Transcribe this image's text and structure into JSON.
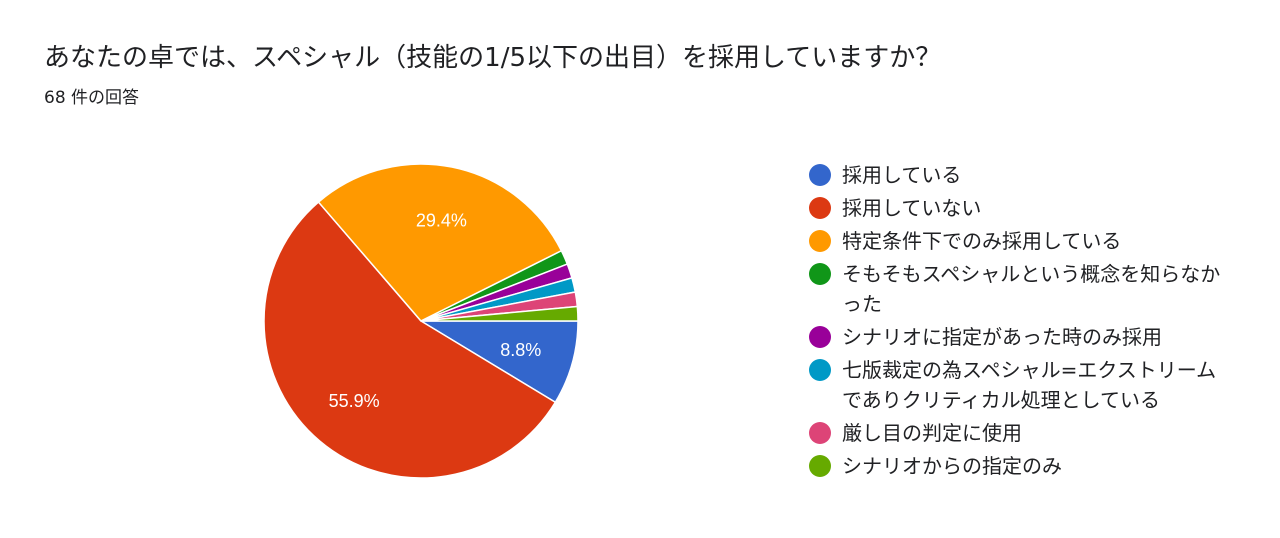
{
  "header": {
    "title": "あなたの卓では、スペシャル（技能の1/5以下の出目）を採用していますか？",
    "response_count": "68 件の回答"
  },
  "chart_data": {
    "type": "pie",
    "total_responses": 68,
    "slices": [
      {
        "label": "採用している",
        "value": 8.8,
        "color": "#3366cc",
        "data_label": "8.8%"
      },
      {
        "label": "採用していない",
        "value": 55.9,
        "color": "#dc3912",
        "data_label": "55.9%"
      },
      {
        "label": "特定条件下でのみ採用している",
        "value": 29.4,
        "color": "#ff9900",
        "data_label": "29.4%"
      },
      {
        "label": "そもそもスペシャルという概念を知らなかった",
        "value": 1.5,
        "color": "#109618",
        "data_label": ""
      },
      {
        "label": "シナリオに指定があった時のみ採用",
        "value": 1.5,
        "color": "#990099",
        "data_label": ""
      },
      {
        "label": "七版裁定の為スペシャル=エクストリームでありクリティカル処理としている",
        "value": 1.5,
        "color": "#0099c6",
        "data_label": ""
      },
      {
        "label": "厳し目の判定に使用",
        "value": 1.5,
        "color": "#dd4477",
        "data_label": ""
      },
      {
        "label": "シナリオからの指定のみ",
        "value": 1.5,
        "color": "#66aa00",
        "data_label": ""
      }
    ],
    "start_angle_deg": 90,
    "direction": "clockwise",
    "legend_position": "right"
  }
}
